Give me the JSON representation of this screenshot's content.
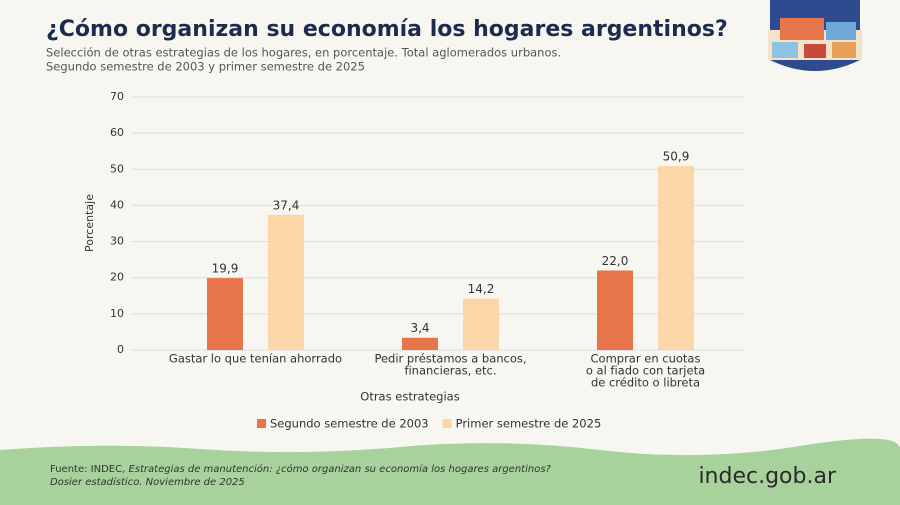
{
  "chart_data": {
    "type": "bar",
    "title": "¿Cómo organizan su economía los hogares argentinos?",
    "subtitle": [
      "Selección de otras estrategias de los hogares, en porcentaje. Total aglomerados urbanos.",
      "Segundo semestre de 2003 y primer semestre de 2025"
    ],
    "y_label": "Porcentaje",
    "x_label": "Otras estrategias",
    "categories": [
      [
        "Gastar lo que tenían ahorrado"
      ],
      [
        "Pedir préstamos a bancos,",
        "financieras, etc."
      ],
      [
        "Comprar en cuotas",
        "o al fiado con tarjeta",
        "de crédito o libreta"
      ]
    ],
    "series": [
      {
        "name": "Segundo semestre de 2003",
        "color": "#e8744a",
        "values": [
          19.9,
          3.4,
          22.0
        ],
        "value_labels": [
          "19,9",
          "3,4",
          "22,0"
        ]
      },
      {
        "name": "Primer semestre de 2025",
        "color": "#fbd6a8",
        "values": [
          37.4,
          14.2,
          50.9
        ],
        "value_labels": [
          "37,4",
          "14,2",
          "50,9"
        ]
      }
    ],
    "ylim": [
      0,
      70
    ],
    "yticks": [
      0,
      10,
      20,
      30,
      40,
      50,
      60,
      70
    ],
    "grid": true,
    "legend": "bottom",
    "source": {
      "prefix": "Fuente: INDEC, ",
      "title": "Estrategias de manutención: ¿cómo organizan su economía los hogares argentinos?",
      "line2": "Dosier estadístico. Noviembre de 2025"
    },
    "logo": "indec.gob.ar"
  }
}
